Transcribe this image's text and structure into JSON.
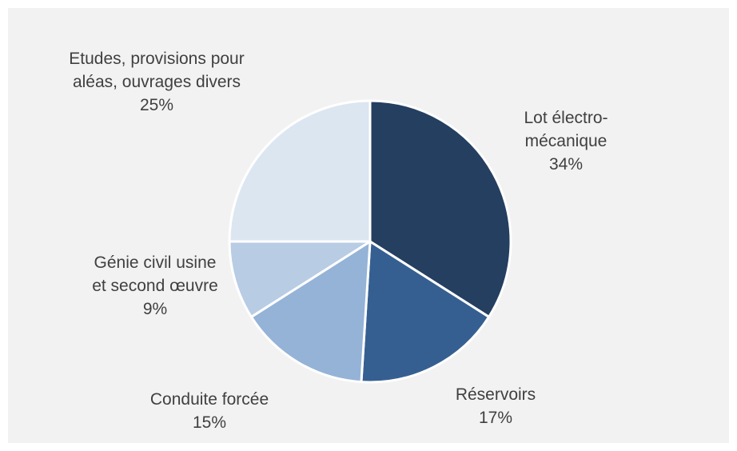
{
  "chart_data": {
    "type": "pie",
    "title": "",
    "start_angle_deg": 0,
    "direction": "clockwise",
    "slices": [
      {
        "label": "Lot électro-mécanique",
        "value": 34,
        "pct_label": "34%",
        "color": "#243f60"
      },
      {
        "label": "Réservoirs",
        "value": 17,
        "pct_label": "17%",
        "color": "#365f91"
      },
      {
        "label": "Conduite forcée",
        "value": 15,
        "pct_label": "15%",
        "color": "#95b3d7"
      },
      {
        "label": "Génie civil usine et second œuvre",
        "value": 9,
        "pct_label": "9%",
        "color": "#b8cce4"
      },
      {
        "label": "Etudes, provisions pour aléas, ouvrages divers",
        "value": 25,
        "pct_label": "25%",
        "color": "#dce6f1"
      }
    ],
    "background": "#f2f2f2",
    "slice_border_color": "#ffffff",
    "legend": "none"
  }
}
